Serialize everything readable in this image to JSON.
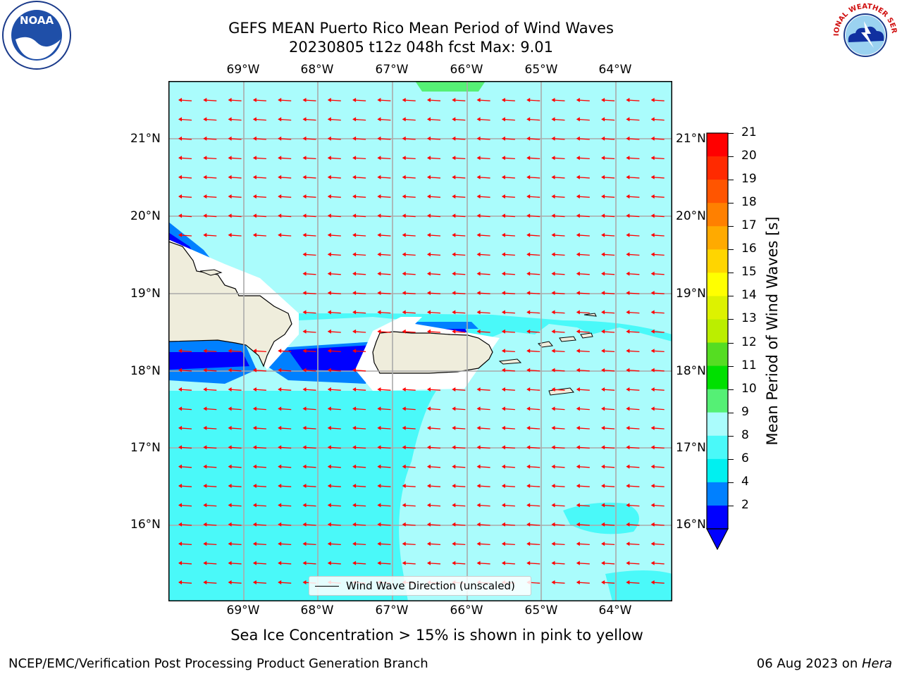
{
  "title": {
    "line1": "GEFS MEAN Puerto Rico Mean Period of Wind Waves",
    "line2": "20230805 t12z 048h fcst   Max: 9.01"
  },
  "logos": {
    "left": {
      "name": "noaa-logo",
      "text": "NOAA",
      "ring_text": "NATIONAL OCEANIC AND ATMOSPHERIC ADMINISTRATION · U.S. DEPARTMENT OF COMMERCE"
    },
    "right": {
      "name": "nws-logo",
      "ring_text": "NATIONAL WEATHER SERVICE"
    }
  },
  "map": {
    "lon_labels": [
      "69°W",
      "68°W",
      "67°W",
      "66°W",
      "65°W",
      "64°W"
    ],
    "lat_labels": [
      "21°N",
      "20°N",
      "19°N",
      "18°N",
      "17°N",
      "16°N"
    ],
    "legend": "Wind Wave Direction (unscaled)",
    "colors": {
      "ocean_light": "#aafcfc",
      "ocean_mid": "#4af9f9",
      "ocean_cyan": "#00f0f0",
      "ocean_blue": "#0080ff",
      "ocean_dark": "#0000ff",
      "land": "#efeddc",
      "arrow": "#ff0000",
      "green_patch": "#55f075"
    }
  },
  "colorbar": {
    "title": "Mean Period of Wind Waves [s]",
    "ticks": [
      "21",
      "20",
      "19",
      "18",
      "17",
      "16",
      "15",
      "14",
      "13",
      "12",
      "11",
      "10",
      "9",
      "8",
      "6",
      "4",
      "2"
    ],
    "colors": [
      "#ff0000",
      "#ff2a00",
      "#ff5500",
      "#ff8000",
      "#ffaa00",
      "#ffd500",
      "#ffff00",
      "#ddf200",
      "#bbee00",
      "#55dd22",
      "#00e000",
      "#55f075",
      "#aafcfc",
      "#4af9f9",
      "#00f0f0",
      "#0080ff",
      "#0000ff"
    ]
  },
  "footer": {
    "sea_ice_note": "Sea Ice Concentration > 15% is shown in pink to yellow",
    "left": "NCEP/EMC/Verification Post Processing Product Generation Branch",
    "right_date": "06 Aug 2023 on ",
    "right_host": "Hera"
  }
}
